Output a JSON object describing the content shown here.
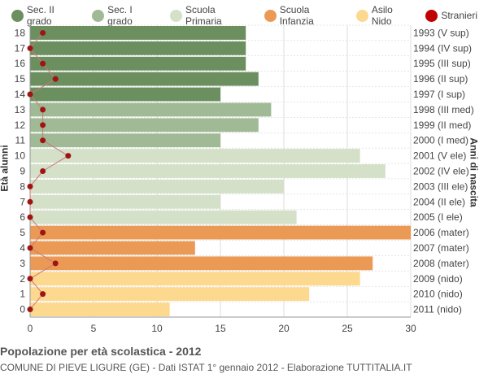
{
  "legend": [
    {
      "label": "Sec. II grado",
      "color": "#6b8f5e"
    },
    {
      "label": "Sec. I grado",
      "color": "#9fba94"
    },
    {
      "label": "Scuola Primaria",
      "color": "#d4e0c8"
    },
    {
      "label": "Scuola Infanzia",
      "color": "#eb9a55"
    },
    {
      "label": "Asilo Nido",
      "color": "#fdd88f"
    },
    {
      "label": "Stranieri",
      "color": "#c00000"
    }
  ],
  "footer": {
    "title": "Popolazione per età scolastica - 2012",
    "subtitle": "COMUNE DI PIEVE LIGURE (GE) - Dati ISTAT 1° gennaio 2012 - Elaborazione TUTTITALIA.IT"
  },
  "chart_data": {
    "type": "bar",
    "orientation": "horizontal",
    "ylabel_left": "Età alunni",
    "ylabel_right": "Anni di nascita",
    "xlim": [
      0,
      30
    ],
    "xticks": [
      0,
      5,
      10,
      15,
      20,
      25,
      30
    ],
    "ages": [
      18,
      17,
      16,
      15,
      14,
      13,
      12,
      11,
      10,
      9,
      8,
      7,
      6,
      5,
      4,
      3,
      2,
      1,
      0
    ],
    "birth_years": [
      "1993 (V sup)",
      "1994 (IV sup)",
      "1995 (III sup)",
      "1996 (II sup)",
      "1997 (I sup)",
      "1998 (III med)",
      "1999 (II med)",
      "2000 (I med)",
      "2001 (V ele)",
      "2002 (IV ele)",
      "2003 (III ele)",
      "2004 (II ele)",
      "2005 (I ele)",
      "2006 (mater)",
      "2007 (mater)",
      "2008 (mater)",
      "2009 (nido)",
      "2010 (nido)",
      "2011 (nido)"
    ],
    "values": [
      17,
      17,
      17,
      18,
      15,
      19,
      18,
      15,
      26,
      28,
      20,
      15,
      21,
      30,
      13,
      27,
      26,
      22,
      11
    ],
    "category": [
      "Sec. II grado",
      "Sec. II grado",
      "Sec. II grado",
      "Sec. II grado",
      "Sec. II grado",
      "Sec. I grado",
      "Sec. I grado",
      "Sec. I grado",
      "Scuola Primaria",
      "Scuola Primaria",
      "Scuola Primaria",
      "Scuola Primaria",
      "Scuola Primaria",
      "Scuola Infanzia",
      "Scuola Infanzia",
      "Scuola Infanzia",
      "Asilo Nido",
      "Asilo Nido",
      "Asilo Nido"
    ],
    "stranieri": [
      1,
      0,
      1,
      2,
      0,
      1,
      1,
      1,
      3,
      1,
      0,
      0,
      0,
      1,
      0,
      2,
      0,
      1,
      0
    ],
    "grid": true
  }
}
